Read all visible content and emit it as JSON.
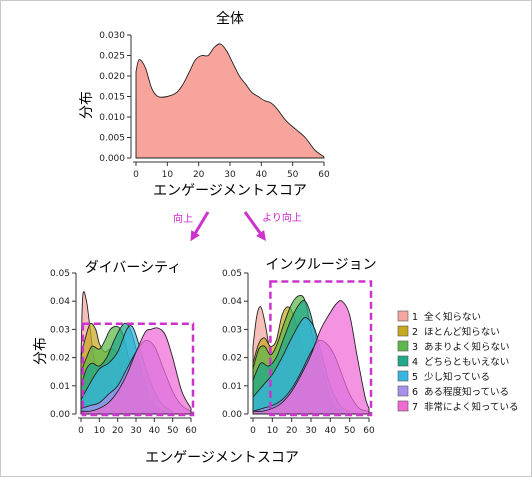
{
  "arrows": {
    "left_label": "向上",
    "right_label": "より向上",
    "color": "#cc33cc"
  },
  "legend": [
    {
      "num": "1",
      "label": "全く知らない",
      "color": "#f4a6a0"
    },
    {
      "num": "2",
      "label": "ほとんど知らない",
      "color": "#c8a820"
    },
    {
      "num": "3",
      "label": "あまりよく知らない",
      "color": "#5cb84a"
    },
    {
      "num": "4",
      "label": "どちらともいえない",
      "color": "#1fa88a"
    },
    {
      "num": "5",
      "label": "少し知っている",
      "color": "#36b6e0"
    },
    {
      "num": "6",
      "label": "ある程度知っている",
      "color": "#a98ff0"
    },
    {
      "num": "7",
      "label": "非常によく知っている",
      "color": "#f06ad6"
    }
  ],
  "bottom_xlabel": "エンゲージメントスコア",
  "chart_data": [
    {
      "type": "area",
      "title": "全体",
      "xlabel": "エンゲージメントスコア",
      "ylabel": "分布",
      "xlim": [
        0,
        60
      ],
      "ylim": [
        0,
        0.03
      ],
      "xticks": [
        0,
        10,
        20,
        30,
        40,
        50,
        60
      ],
      "yticks": [
        0.0,
        0.005,
        0.01,
        0.015,
        0.02,
        0.025,
        0.03
      ],
      "ytick_labels": [
        "0.000",
        "0.005",
        "0.010",
        "0.015",
        "0.020",
        "0.025",
        "0.030"
      ],
      "series": [
        {
          "color": "#f6a49c",
          "x": [
            0,
            1,
            3,
            5,
            7,
            10,
            13,
            15,
            17,
            19,
            21,
            23,
            25,
            27,
            29,
            31,
            33,
            35,
            37,
            39,
            41,
            43,
            45,
            48,
            51,
            54,
            57,
            60
          ],
          "y": [
            0.021,
            0.024,
            0.022,
            0.017,
            0.015,
            0.015,
            0.016,
            0.018,
            0.021,
            0.024,
            0.025,
            0.025,
            0.027,
            0.0278,
            0.026,
            0.023,
            0.02,
            0.018,
            0.016,
            0.015,
            0.014,
            0.0135,
            0.012,
            0.009,
            0.007,
            0.005,
            0.002,
            0.0003
          ]
        }
      ]
    },
    {
      "type": "area",
      "title": "ダイバーシティ",
      "xlabel": "",
      "ylabel": "分布",
      "xlim": [
        0,
        60
      ],
      "ylim": [
        0,
        0.05
      ],
      "xticks": [
        0,
        10,
        20,
        30,
        40,
        50,
        60
      ],
      "yticks": [
        0.0,
        0.01,
        0.02,
        0.03,
        0.04,
        0.05
      ],
      "ytick_labels": [
        "0.00",
        "0.01",
        "0.02",
        "0.03",
        "0.04",
        "0.05"
      ],
      "highlight_box": {
        "x": [
          1,
          60
        ],
        "y": [
          0.0,
          0.032
        ]
      },
      "series": [
        {
          "color": "#f4a6a0",
          "x": [
            0,
            1,
            3,
            5,
            7,
            10,
            15,
            20,
            25,
            30,
            35,
            40
          ],
          "y": [
            0.02,
            0.042,
            0.04,
            0.03,
            0.02,
            0.012,
            0.006,
            0.003,
            0.0015,
            0.0005,
            0.0002,
            0
          ]
        },
        {
          "color": "#c8a820",
          "x": [
            0,
            2,
            5,
            8,
            10,
            13,
            16,
            19,
            22,
            25,
            30,
            35,
            40
          ],
          "y": [
            0.02,
            0.026,
            0.032,
            0.03,
            0.025,
            0.022,
            0.023,
            0.022,
            0.015,
            0.009,
            0.004,
            0.001,
            0
          ]
        },
        {
          "color": "#5cb84a",
          "x": [
            0,
            3,
            6,
            10,
            13,
            16,
            20,
            23,
            26,
            30,
            35,
            40
          ],
          "y": [
            0.015,
            0.02,
            0.024,
            0.023,
            0.026,
            0.03,
            0.031,
            0.028,
            0.02,
            0.011,
            0.004,
            0.001
          ]
        },
        {
          "color": "#1fa88a",
          "x": [
            0,
            3,
            6,
            10,
            14,
            18,
            22,
            25,
            28,
            32,
            36,
            40,
            45
          ],
          "y": [
            0.01,
            0.016,
            0.018,
            0.017,
            0.02,
            0.026,
            0.031,
            0.032,
            0.028,
            0.018,
            0.008,
            0.003,
            0.001
          ]
        },
        {
          "color": "#36b6e0",
          "x": [
            0,
            5,
            10,
            15,
            20,
            25,
            28,
            31,
            35,
            40,
            45,
            50
          ],
          "y": [
            0.005,
            0.011,
            0.016,
            0.018,
            0.022,
            0.03,
            0.031,
            0.026,
            0.017,
            0.008,
            0.003,
            0.001
          ]
        },
        {
          "color": "#a98ff0",
          "x": [
            0,
            5,
            10,
            15,
            20,
            25,
            30,
            35,
            40,
            45,
            50,
            55,
            60
          ],
          "y": [
            0.002,
            0.003,
            0.004,
            0.007,
            0.01,
            0.016,
            0.022,
            0.026,
            0.024,
            0.016,
            0.008,
            0.003,
            0.001
          ]
        },
        {
          "color": "#f06ad6",
          "x": [
            0,
            5,
            10,
            15,
            20,
            25,
            30,
            35,
            38,
            42,
            46,
            50,
            55,
            60
          ],
          "y": [
            0.001,
            0.001,
            0.002,
            0.004,
            0.008,
            0.014,
            0.022,
            0.029,
            0.03,
            0.0305,
            0.028,
            0.02,
            0.008,
            0.002
          ]
        }
      ]
    },
    {
      "type": "area",
      "title": "インクルージョン",
      "xlabel": "",
      "ylabel": "",
      "xlim": [
        0,
        60
      ],
      "ylim": [
        0,
        0.05
      ],
      "xticks": [
        0,
        10,
        20,
        30,
        40,
        50,
        60
      ],
      "yticks": [
        0.0,
        0.01,
        0.02,
        0.03,
        0.04,
        0.05
      ],
      "ytick_labels": [
        "0.00",
        "0.01",
        "0.02",
        "0.03",
        "0.04",
        "0.05"
      ],
      "highlight_box": {
        "x": [
          9,
          60
        ],
        "y": [
          0.0,
          0.047
        ]
      },
      "series": [
        {
          "color": "#f4a6a0",
          "x": [
            0,
            2,
            4,
            6,
            8,
            10,
            13,
            16,
            20,
            25,
            30
          ],
          "y": [
            0.024,
            0.035,
            0.038,
            0.033,
            0.025,
            0.016,
            0.008,
            0.004,
            0.002,
            0.0005,
            0
          ]
        },
        {
          "color": "#c8a820",
          "x": [
            0,
            3,
            6,
            9,
            12,
            15,
            18,
            21,
            25,
            30,
            35,
            40
          ],
          "y": [
            0.018,
            0.025,
            0.027,
            0.024,
            0.026,
            0.035,
            0.038,
            0.035,
            0.025,
            0.012,
            0.004,
            0.001
          ]
        },
        {
          "color": "#5cb84a",
          "x": [
            0,
            3,
            6,
            9,
            12,
            16,
            20,
            24,
            27,
            30,
            35,
            40
          ],
          "y": [
            0.016,
            0.023,
            0.024,
            0.021,
            0.024,
            0.032,
            0.039,
            0.042,
            0.04,
            0.03,
            0.014,
            0.004
          ]
        },
        {
          "color": "#1fa88a",
          "x": [
            0,
            4,
            8,
            12,
            16,
            20,
            24,
            27,
            30,
            34,
            38,
            42,
            46
          ],
          "y": [
            0.012,
            0.018,
            0.017,
            0.02,
            0.027,
            0.034,
            0.039,
            0.04,
            0.035,
            0.022,
            0.01,
            0.003,
            0.001
          ]
        },
        {
          "color": "#36b6e0",
          "x": [
            0,
            5,
            10,
            15,
            20,
            25,
            28,
            32,
            36,
            40,
            45,
            50
          ],
          "y": [
            0.006,
            0.01,
            0.014,
            0.02,
            0.027,
            0.033,
            0.034,
            0.03,
            0.02,
            0.01,
            0.003,
            0.001
          ]
        },
        {
          "color": "#a98ff0",
          "x": [
            0,
            5,
            10,
            15,
            20,
            25,
            30,
            34,
            38,
            42,
            46,
            50,
            55,
            60
          ],
          "y": [
            0.001,
            0.002,
            0.003,
            0.005,
            0.009,
            0.015,
            0.022,
            0.026,
            0.025,
            0.021,
            0.014,
            0.007,
            0.002,
            0.001
          ]
        },
        {
          "color": "#f06ad6",
          "x": [
            0,
            5,
            10,
            15,
            20,
            25,
            30,
            35,
            40,
            43,
            46,
            50,
            54,
            58,
            60
          ],
          "y": [
            0.001,
            0.001,
            0.002,
            0.004,
            0.008,
            0.014,
            0.021,
            0.03,
            0.036,
            0.039,
            0.04,
            0.035,
            0.02,
            0.006,
            0.002
          ]
        }
      ]
    }
  ]
}
